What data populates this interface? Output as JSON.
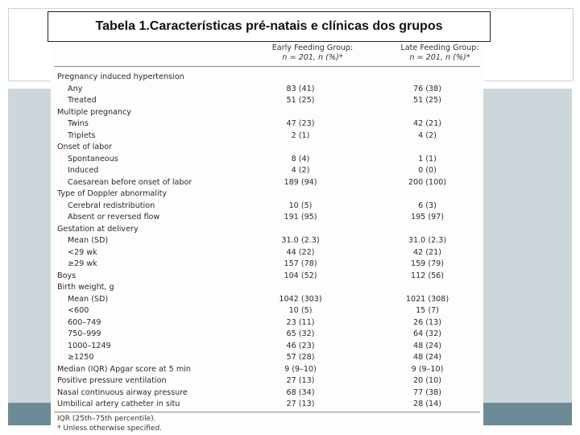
{
  "slide": {
    "title": "Tabela 1.Características pré-natais e clínicas dos grupos"
  },
  "table": {
    "columns": [
      {
        "label": "Early Feeding Group:",
        "sub": "n = 201, n (%)*"
      },
      {
        "label": "Late Feeding Group:",
        "sub": "n = 201, n (%)*"
      }
    ],
    "rows": [
      {
        "label": "Pregnancy induced hypertension",
        "indent": false,
        "early": "",
        "late": ""
      },
      {
        "label": "Any",
        "indent": true,
        "early": "83 (41)",
        "late": "76 (38)"
      },
      {
        "label": "Treated",
        "indent": true,
        "early": "51 (25)",
        "late": "51 (25)"
      },
      {
        "label": "Multiple pregnancy",
        "indent": false,
        "early": "",
        "late": ""
      },
      {
        "label": "Twins",
        "indent": true,
        "early": "47 (23)",
        "late": "42 (21)"
      },
      {
        "label": "Triplets",
        "indent": true,
        "early": "2 (1)",
        "late": "4 (2)"
      },
      {
        "label": "Onset of labor",
        "indent": false,
        "early": "",
        "late": ""
      },
      {
        "label": "Spontaneous",
        "indent": true,
        "early": "8 (4)",
        "late": "1 (1)"
      },
      {
        "label": "Induced",
        "indent": true,
        "early": "4 (2)",
        "late": "0 (0)"
      },
      {
        "label": "Caesarean before onset of labor",
        "indent": true,
        "early": "189 (94)",
        "late": "200 (100)"
      },
      {
        "label": "Type of Doppler abnormality",
        "indent": false,
        "early": "",
        "late": ""
      },
      {
        "label": "Cerebral redistribution",
        "indent": true,
        "early": "10 (5)",
        "late": "6 (3)"
      },
      {
        "label": "Absent or reversed flow",
        "indent": true,
        "early": "191 (95)",
        "late": "195 (97)"
      },
      {
        "label": "Gestation at delivery",
        "indent": false,
        "early": "",
        "late": ""
      },
      {
        "label": "Mean (SD)",
        "indent": true,
        "early": "31.0 (2.3)",
        "late": "31.0 (2.3)"
      },
      {
        "label": "<29 wk",
        "indent": true,
        "early": "44 (22)",
        "late": "42 (21)"
      },
      {
        "label": "≥29 wk",
        "indent": true,
        "early": "157 (78)",
        "late": "159 (79)"
      },
      {
        "label": "Boys",
        "indent": false,
        "early": "104 (52)",
        "late": "112 (56)"
      },
      {
        "label": "Birth weight, g",
        "indent": false,
        "early": "",
        "late": ""
      },
      {
        "label": "Mean (SD)",
        "indent": true,
        "early": "1042 (303)",
        "late": "1021 (308)"
      },
      {
        "label": "<600",
        "indent": true,
        "early": "10 (5)",
        "late": "15 (7)"
      },
      {
        "label": "600–749",
        "indent": true,
        "early": "23 (11)",
        "late": "26 (13)"
      },
      {
        "label": "750–999",
        "indent": true,
        "early": "65 (32)",
        "late": "64 (32)"
      },
      {
        "label": "1000–1249",
        "indent": true,
        "early": "46 (23)",
        "late": "48 (24)"
      },
      {
        "label": "≥1250",
        "indent": true,
        "early": "57 (28)",
        "late": "48 (24)"
      },
      {
        "label": "Median (IQR) Apgar score at 5 min",
        "indent": false,
        "early": "9 (9–10)",
        "late": "9 (9–10)"
      },
      {
        "label": "Positive pressure ventilation",
        "indent": false,
        "early": "27 (13)",
        "late": "20 (10)"
      },
      {
        "label": "Nasal continuous airway pressure",
        "indent": false,
        "early": "68 (34)",
        "late": "77 (38)"
      },
      {
        "label": "Umbilical artery catheter in situ",
        "indent": false,
        "early": "27 (13)",
        "late": "28 (14)"
      }
    ],
    "footnotes": [
      "IQR (25th–75th percentile).",
      "* Unless otherwise specified."
    ]
  }
}
